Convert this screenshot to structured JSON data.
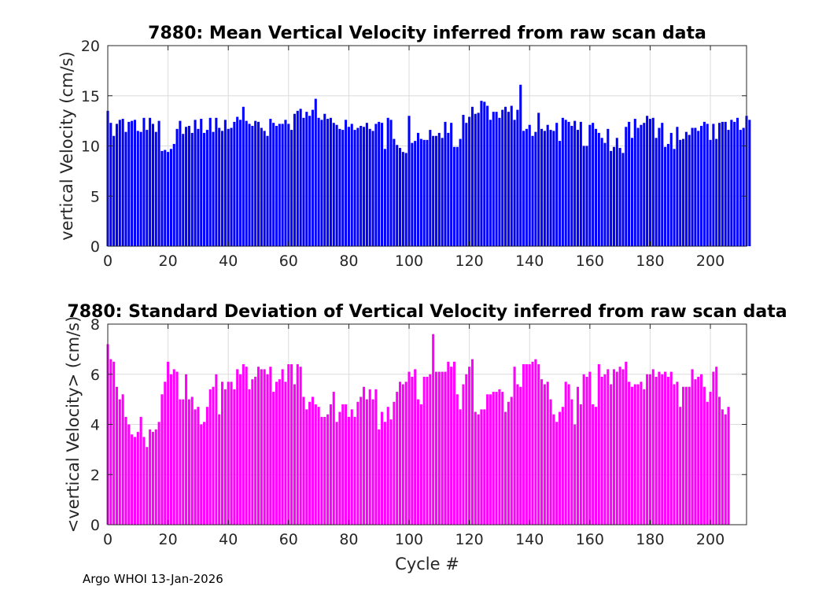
{
  "chart_data": [
    {
      "type": "bar",
      "title": "7880: Mean Vertical Velocity inferred from raw scan data",
      "xlabel": "",
      "ylabel": "vertical Velocity (cm/s)",
      "xlim": [
        0,
        212
      ],
      "ylim": [
        0,
        20
      ],
      "xticks": [
        "0",
        "20",
        "40",
        "60",
        "80",
        "100",
        "120",
        "140",
        "160",
        "180",
        "200"
      ],
      "yticks": [
        "0",
        "5",
        "10",
        "15",
        "20"
      ],
      "grid": true,
      "color": "#0000ff",
      "x_start": 0,
      "values": [
        13.5,
        12.3,
        11.0,
        12.2,
        12.6,
        12.7,
        11.4,
        12.4,
        12.5,
        12.6,
        11.5,
        11.4,
        12.8,
        11.6,
        12.8,
        12.2,
        11.4,
        12.5,
        9.5,
        9.6,
        9.4,
        9.7,
        10.2,
        11.7,
        12.5,
        11.2,
        11.9,
        12.0,
        11.3,
        12.6,
        11.7,
        12.7,
        11.3,
        11.6,
        12.8,
        11.4,
        12.8,
        11.8,
        11.5,
        12.6,
        11.7,
        11.8,
        12.4,
        12.9,
        12.6,
        13.9,
        12.5,
        12.2,
        12.0,
        12.5,
        12.4,
        11.8,
        11.5,
        11.0,
        12.7,
        12.3,
        12.0,
        12.2,
        12.2,
        12.6,
        12.2,
        11.6,
        13.2,
        13.5,
        13.7,
        12.8,
        13.4,
        13.0,
        13.6,
        14.7,
        12.8,
        12.6,
        13.2,
        12.7,
        12.8,
        12.3,
        12.1,
        11.7,
        11.6,
        12.6,
        11.9,
        12.2,
        11.6,
        11.8,
        12.0,
        11.9,
        12.3,
        11.7,
        11.5,
        12.2,
        12.4,
        12.3,
        9.7,
        12.8,
        12.6,
        10.7,
        10.1,
        9.8,
        9.4,
        9.3,
        13.0,
        10.3,
        10.5,
        11.3,
        10.7,
        10.6,
        10.6,
        11.6,
        11.0,
        11.0,
        11.3,
        10.8,
        12.4,
        11.3,
        12.3,
        9.9,
        9.9,
        10.7,
        13.1,
        12.3,
        12.9,
        13.9,
        13.2,
        13.3,
        14.5,
        14.4,
        14.0,
        12.6,
        13.4,
        13.4,
        12.8,
        13.6,
        13.9,
        13.4,
        14.0,
        12.6,
        13.6,
        16.1,
        11.5,
        11.7,
        12.1,
        11.0,
        11.4,
        13.3,
        11.7,
        11.5,
        12.1,
        11.6,
        11.5,
        12.3,
        10.5,
        12.8,
        12.6,
        12.4,
        12.0,
        12.5,
        11.6,
        12.4,
        10.0,
        10.0,
        12.1,
        12.3,
        11.7,
        11.3,
        10.8,
        10.3,
        11.7,
        9.5,
        9.9,
        10.8,
        9.8,
        9.3,
        11.9,
        12.4,
        10.8,
        12.7,
        11.8,
        12.1,
        12.3,
        13.0,
        12.7,
        12.8,
        10.8,
        11.8,
        12.3,
        9.9,
        10.2,
        11.3,
        9.7,
        11.9,
        10.6,
        10.7,
        11.4,
        11.1,
        11.8,
        11.8,
        11.5,
        12.0,
        12.4,
        12.2,
        10.6,
        12.2,
        10.7,
        12.3,
        12.4,
        12.4,
        11.6,
        12.6,
        12.4,
        12.8,
        11.6,
        11.8,
        13.0,
        12.6
      ]
    },
    {
      "type": "bar",
      "title": "7880: Standard Deviation of Vertical Velocity inferred from raw scan data",
      "xlabel": "Cycle #",
      "ylabel": "<vertical Velocity> (cm/s)",
      "xlim": [
        0,
        212
      ],
      "ylim": [
        0,
        8
      ],
      "xticks": [
        "0",
        "20",
        "40",
        "60",
        "80",
        "100",
        "120",
        "140",
        "160",
        "180",
        "200"
      ],
      "yticks": [
        "0",
        "2",
        "4",
        "6",
        "8"
      ],
      "grid": true,
      "color": "#ff00ff",
      "x_start": 0,
      "values": [
        7.2,
        6.6,
        6.5,
        5.5,
        5.0,
        5.2,
        4.3,
        4.0,
        3.6,
        3.5,
        3.7,
        4.3,
        3.5,
        3.1,
        3.8,
        3.7,
        3.8,
        4.1,
        5.2,
        5.7,
        6.5,
        6.0,
        6.2,
        6.1,
        5.0,
        5.0,
        6.0,
        5.0,
        5.1,
        4.6,
        4.7,
        4.0,
        4.1,
        4.7,
        5.4,
        5.5,
        6.0,
        4.4,
        5.7,
        5.4,
        5.7,
        5.7,
        5.4,
        6.2,
        6.0,
        6.4,
        6.3,
        5.4,
        5.8,
        5.9,
        6.3,
        6.2,
        6.2,
        6.0,
        6.3,
        5.3,
        5.7,
        5.8,
        6.2,
        5.7,
        6.4,
        6.4,
        5.6,
        6.4,
        6.3,
        5.1,
        4.6,
        4.9,
        5.1,
        4.8,
        4.7,
        4.3,
        4.3,
        4.4,
        4.8,
        5.3,
        4.1,
        4.5,
        4.8,
        4.8,
        4.3,
        4.6,
        4.3,
        4.9,
        5.1,
        5.5,
        5.0,
        5.4,
        5.0,
        5.4,
        3.8,
        4.5,
        4.1,
        4.7,
        4.2,
        4.9,
        5.3,
        5.7,
        5.6,
        5.7,
        6.1,
        5.9,
        6.2,
        5.0,
        4.8,
        5.9,
        5.9,
        6.0,
        7.6,
        6.1,
        6.1,
        6.1,
        6.1,
        6.5,
        6.3,
        6.5,
        5.2,
        4.6,
        5.6,
        6.0,
        6.3,
        6.6,
        4.5,
        4.4,
        4.6,
        4.6,
        5.2,
        5.2,
        5.3,
        5.3,
        5.4,
        5.3,
        4.5,
        4.9,
        5.1,
        6.3,
        5.6,
        5.5,
        6.4,
        6.4,
        6.4,
        6.5,
        6.6,
        6.4,
        5.8,
        5.6,
        5.7,
        5.0,
        4.4,
        4.1,
        4.5,
        4.7,
        5.7,
        5.6,
        5.0,
        4.0,
        5.5,
        4.8,
        6.0,
        5.9,
        6.1,
        4.8,
        4.7,
        6.4,
        5.9,
        6.0,
        6.2,
        5.6,
        6.2,
        6.1,
        6.3,
        6.2,
        6.5,
        5.7,
        5.5,
        5.6,
        5.6,
        5.7,
        5.4,
        6.0,
        6.0,
        6.2,
        5.9,
        6.1,
        6.0,
        6.1,
        5.9,
        6.1,
        5.6,
        5.7,
        4.7,
        5.5,
        5.5,
        5.5,
        6.2,
        5.8,
        5.9,
        6.0,
        5.5,
        4.9,
        5.3,
        6.1,
        6.3,
        5.1,
        4.6,
        4.4,
        4.7
      ]
    }
  ],
  "footer": "Argo WHOI 13-Jan-2026"
}
